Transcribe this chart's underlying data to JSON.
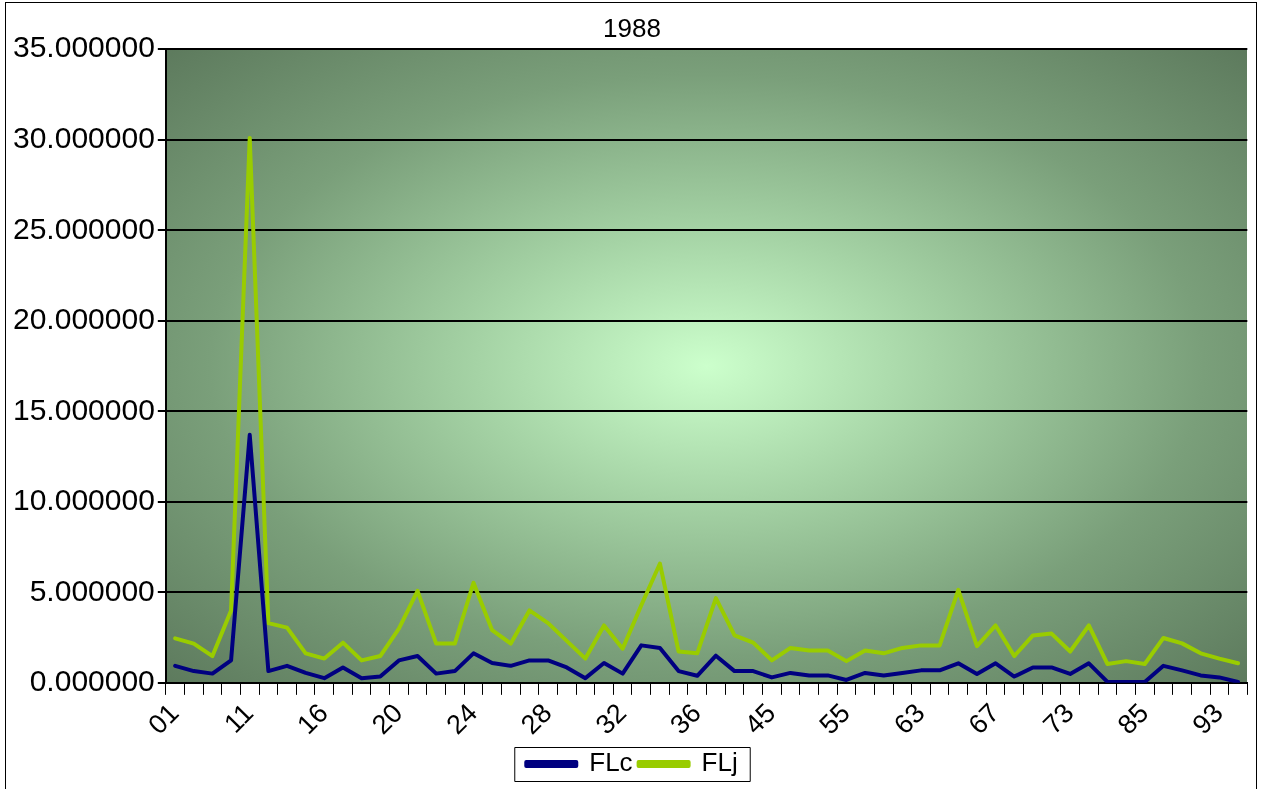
{
  "chart_data": {
    "type": "line",
    "title": "1988",
    "categories": [
      "01",
      null,
      null,
      null,
      "11",
      null,
      null,
      null,
      "16",
      null,
      null,
      null,
      "20",
      null,
      null,
      null,
      "24",
      null,
      null,
      null,
      "28",
      null,
      null,
      null,
      "32",
      null,
      null,
      null,
      "36",
      null,
      null,
      null,
      "45",
      null,
      null,
      null,
      "55",
      null,
      null,
      null,
      "63",
      null,
      null,
      null,
      "67",
      null,
      null,
      null,
      "73",
      null,
      null,
      null,
      "85",
      null,
      null,
      null,
      "93",
      null
    ],
    "series": [
      {
        "name": "FLc",
        "color": "#000080",
        "values": [
          0.94,
          0.65,
          0.51,
          1.24,
          13.7,
          0.65,
          0.94,
          0.55,
          0.26,
          0.85,
          0.26,
          0.35,
          1.24,
          1.48,
          0.51,
          0.65,
          1.63,
          1.1,
          0.94,
          1.24,
          1.24,
          0.85,
          0.26,
          1.1,
          0.51,
          2.07,
          1.93,
          0.65,
          0.39,
          1.5,
          0.65,
          0.65,
          0.3,
          0.55,
          0.41,
          0.41,
          0.16,
          0.55,
          0.41,
          0.55,
          0.69,
          0.69,
          1.08,
          0.49,
          1.08,
          0.35,
          0.85,
          0.85,
          0.49,
          1.08,
          0.05,
          0.05,
          0.05,
          0.94,
          0.69,
          0.41,
          0.3,
          0.05
        ]
      },
      {
        "name": "FLj",
        "color": "#99cc00",
        "values": [
          2.46,
          2.17,
          1.48,
          4.0,
          30.1,
          3.3,
          3.05,
          1.63,
          1.34,
          2.22,
          1.24,
          1.48,
          3.0,
          5.08,
          2.17,
          2.17,
          5.53,
          2.91,
          2.17,
          4.0,
          3.3,
          2.32,
          1.34,
          3.17,
          1.89,
          4.29,
          6.59,
          1.73,
          1.63,
          4.68,
          2.62,
          2.22,
          1.24,
          1.93,
          1.79,
          1.79,
          1.2,
          1.79,
          1.63,
          1.93,
          2.07,
          2.07,
          5.14,
          2.03,
          3.17,
          1.48,
          2.62,
          2.72,
          1.73,
          3.17,
          1.04,
          1.2,
          1.04,
          2.48,
          2.18,
          1.63,
          1.34,
          1.08
        ]
      }
    ],
    "ylim": [
      0,
      35
    ],
    "yticks": [
      {
        "value": 0,
        "label": "0.000000"
      },
      {
        "value": 5,
        "label": "5.000000"
      },
      {
        "value": 10,
        "label": "10.000000"
      },
      {
        "value": 15,
        "label": "15.000000"
      },
      {
        "value": 20,
        "label": "20.000000"
      },
      {
        "value": 25,
        "label": "25.000000"
      },
      {
        "value": 30,
        "label": "30.000000"
      },
      {
        "value": 35,
        "label": "35.000000"
      }
    ],
    "grid": "y",
    "legend": "bottom",
    "marker": "none",
    "line_style": "solid"
  }
}
